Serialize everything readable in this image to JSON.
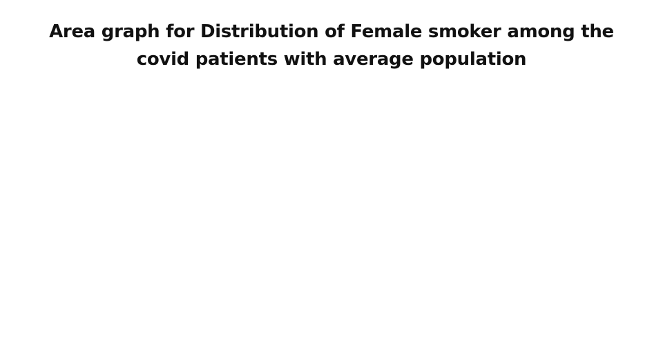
{
  "chart_data": {
    "type": "area",
    "title_line1": "Area graph for Distribution of Female smoker among the",
    "title_line2": "covid patients with average population"
  }
}
